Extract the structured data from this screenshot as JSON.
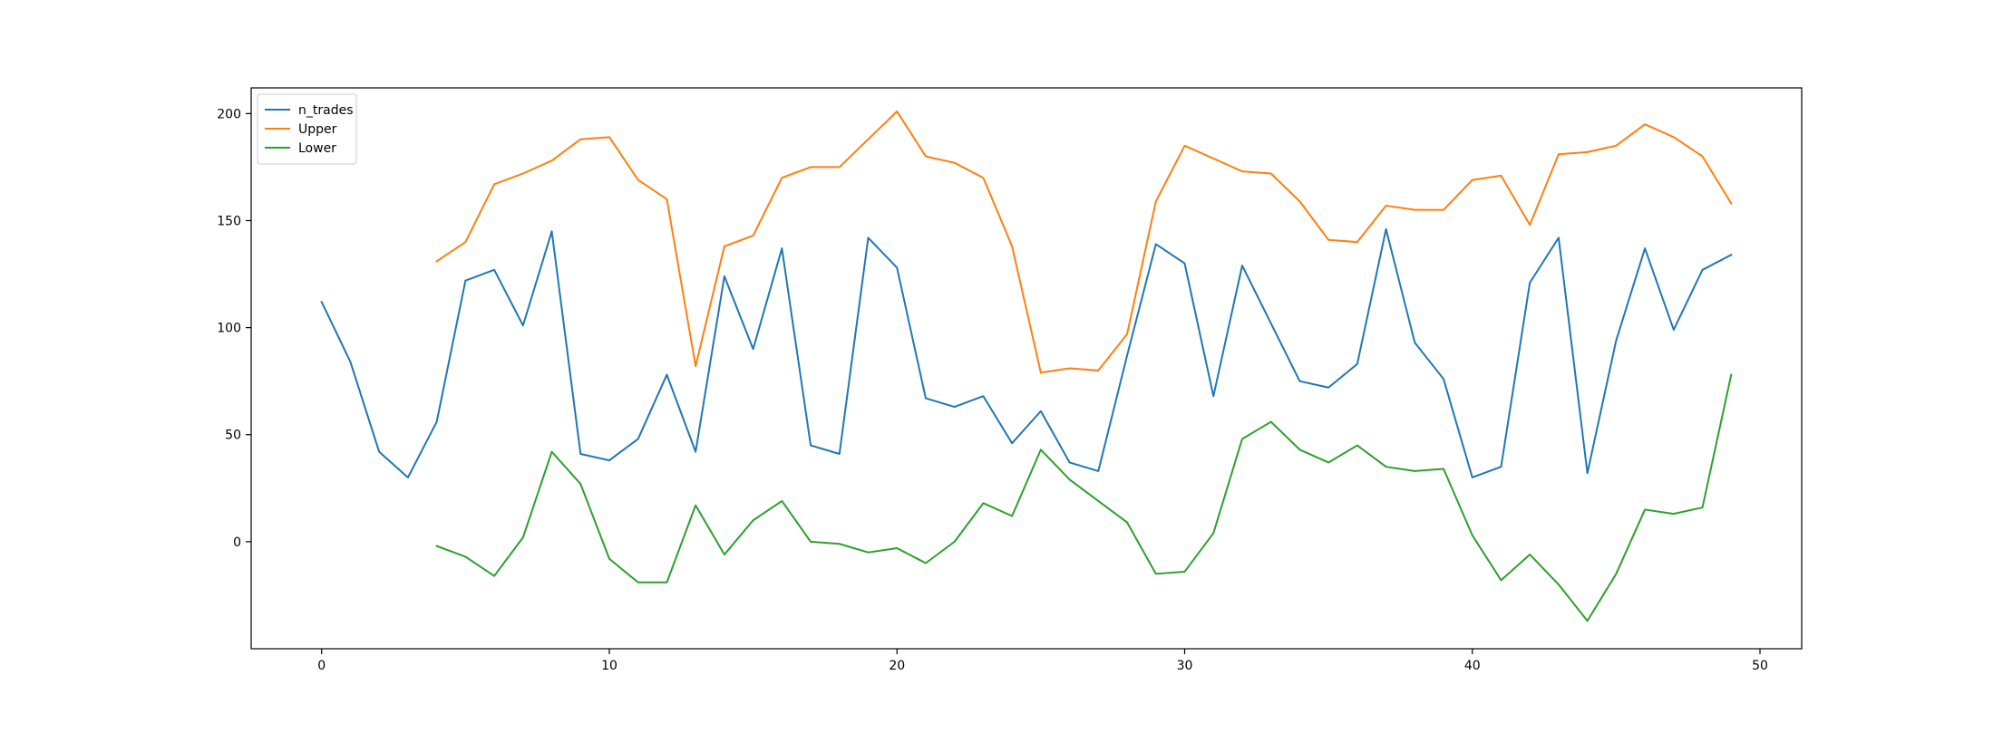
{
  "chart_data": {
    "type": "line",
    "title": "",
    "xlabel": "",
    "ylabel": "",
    "xlim": [
      -2.45,
      51.45
    ],
    "ylim": [
      -50,
      212
    ],
    "xticks": [
      0,
      10,
      20,
      30,
      40,
      50
    ],
    "yticks": [
      0,
      50,
      100,
      150,
      200
    ],
    "grid": false,
    "legend_position": "upper-left",
    "x": [
      0,
      1,
      2,
      3,
      4,
      5,
      6,
      7,
      8,
      9,
      10,
      11,
      12,
      13,
      14,
      15,
      16,
      17,
      18,
      19,
      20,
      21,
      22,
      23,
      24,
      25,
      26,
      27,
      28,
      29,
      30,
      31,
      32,
      33,
      34,
      35,
      36,
      37,
      38,
      39,
      40,
      41,
      42,
      43,
      44,
      45,
      46,
      47,
      48,
      49
    ],
    "series": [
      {
        "name": "n_trades",
        "color": "#1f77b4",
        "values": [
          112,
          84,
          42,
          30,
          56,
          122,
          127,
          101,
          145,
          41,
          38,
          48,
          78,
          42,
          124,
          90,
          137,
          45,
          41,
          142,
          128,
          67,
          63,
          68,
          46,
          61,
          37,
          33,
          87,
          139,
          130,
          68,
          129,
          102,
          75,
          72,
          83,
          146,
          93,
          76,
          30,
          35,
          121,
          142,
          32,
          94,
          137,
          99,
          127,
          134
        ]
      },
      {
        "name": "Upper",
        "color": "#ff7f0e",
        "values": [
          null,
          null,
          null,
          null,
          131,
          140,
          167,
          172,
          178,
          188,
          189,
          169,
          160,
          82,
          138,
          143,
          170,
          175,
          175,
          188,
          201,
          180,
          177,
          170,
          138,
          79,
          81,
          80,
          97,
          159,
          185,
          179,
          173,
          172,
          159,
          141,
          140,
          157,
          155,
          155,
          169,
          171,
          148,
          181,
          182,
          185,
          195,
          189,
          180,
          158
        ]
      },
      {
        "name": "Lower",
        "color": "#2ca02c",
        "values": [
          null,
          null,
          null,
          null,
          -2,
          -7,
          -16,
          2,
          42,
          27,
          -8,
          -19,
          -19,
          17,
          -6,
          10,
          19,
          0,
          -1,
          -5,
          -3,
          -10,
          0,
          18,
          12,
          43,
          29,
          19,
          9,
          -15,
          -14,
          4,
          48,
          56,
          43,
          37,
          45,
          35,
          33,
          34,
          3,
          -18,
          -6,
          -20,
          -37,
          -15,
          15,
          13,
          16,
          78
        ]
      }
    ]
  }
}
